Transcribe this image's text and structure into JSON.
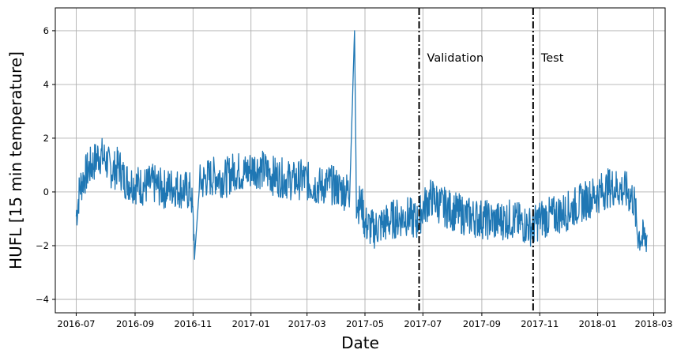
{
  "chart_data": {
    "type": "line",
    "xlabel": "Date",
    "ylabel": "HUFL [15 min temperature]",
    "xlim": [
      "2016-06-09",
      "2018-03-13"
    ],
    "ylim": [
      -4.5,
      6.85
    ],
    "grid": true,
    "x_ticks": [
      "2016-07",
      "2016-09",
      "2016-11",
      "2017-01",
      "2017-03",
      "2017-05",
      "2017-07",
      "2017-09",
      "2017-11",
      "2018-01",
      "2018-03"
    ],
    "y_ticks": [
      -4,
      -2,
      0,
      2,
      4,
      6
    ],
    "y_tick_labels": [
      "−4",
      "−2",
      "0",
      "2",
      "4",
      "6"
    ],
    "series": [
      {
        "color": "#1f77b4",
        "points": [
          [
            "2016-07-01",
            -0.9
          ],
          [
            "2016-07-05",
            0.2
          ],
          [
            "2016-07-10",
            0.6
          ],
          [
            "2016-07-15",
            0.9
          ],
          [
            "2016-07-20",
            1.1
          ],
          [
            "2016-07-25",
            1.4
          ],
          [
            "2016-08-01",
            1.2
          ],
          [
            "2016-08-05",
            0.9
          ],
          [
            "2016-08-10",
            0.8
          ],
          [
            "2016-08-15",
            1.0
          ],
          [
            "2016-08-20",
            0.5
          ],
          [
            "2016-08-25",
            0.4
          ],
          [
            "2016-09-01",
            0.3
          ],
          [
            "2016-09-10",
            0.2
          ],
          [
            "2016-09-20",
            0.3
          ],
          [
            "2016-10-01",
            0.1
          ],
          [
            "2016-10-10",
            0.2
          ],
          [
            "2016-10-20",
            0.1
          ],
          [
            "2016-10-30",
            0.0
          ],
          [
            "2016-11-03",
            -2.2
          ],
          [
            "2016-11-08",
            0.3
          ],
          [
            "2016-11-15",
            0.5
          ],
          [
            "2016-11-25",
            0.6
          ],
          [
            "2016-12-05",
            0.5
          ],
          [
            "2016-12-15",
            0.8
          ],
          [
            "2016-12-25",
            0.7
          ],
          [
            "2017-01-05",
            0.9
          ],
          [
            "2017-01-15",
            0.8
          ],
          [
            "2017-01-25",
            0.6
          ],
          [
            "2017-02-05",
            0.5
          ],
          [
            "2017-02-15",
            0.4
          ],
          [
            "2017-02-25",
            0.5
          ],
          [
            "2017-03-05",
            0.3
          ],
          [
            "2017-03-15",
            0.2
          ],
          [
            "2017-03-25",
            0.3
          ],
          [
            "2017-04-05",
            0.1
          ],
          [
            "2017-04-15",
            0.0
          ],
          [
            "2017-04-20",
            6.0
          ],
          [
            "2017-04-22",
            -0.4
          ],
          [
            "2017-04-28",
            -0.5
          ],
          [
            "2017-05-01",
            -1.2
          ],
          [
            "2017-05-10",
            -1.4
          ],
          [
            "2017-05-20",
            -1.2
          ],
          [
            "2017-06-01",
            -1.0
          ],
          [
            "2017-06-15",
            -0.9
          ],
          [
            "2017-06-25",
            -1.1
          ],
          [
            "2017-07-01",
            -0.6
          ],
          [
            "2017-07-10",
            -0.2
          ],
          [
            "2017-07-20",
            -0.5
          ],
          [
            "2017-08-01",
            -0.7
          ],
          [
            "2017-08-15",
            -0.9
          ],
          [
            "2017-09-01",
            -1.0
          ],
          [
            "2017-09-15",
            -1.1
          ],
          [
            "2017-10-01",
            -1.0
          ],
          [
            "2017-10-15",
            -1.2
          ],
          [
            "2017-10-25",
            -1.3
          ],
          [
            "2017-11-01",
            -1.0
          ],
          [
            "2017-11-15",
            -0.9
          ],
          [
            "2017-12-01",
            -0.7
          ],
          [
            "2017-12-15",
            -0.4
          ],
          [
            "2017-12-25",
            -0.2
          ],
          [
            "2018-01-05",
            0.0
          ],
          [
            "2018-01-15",
            0.2
          ],
          [
            "2018-01-25",
            0.1
          ],
          [
            "2018-02-01",
            0.0
          ],
          [
            "2018-02-08",
            -0.3
          ],
          [
            "2018-02-12",
            -1.5
          ],
          [
            "2018-02-18",
            -1.8
          ],
          [
            "2018-02-22",
            -1.6
          ]
        ]
      }
    ],
    "split_lines": [
      {
        "x": "2017-06-27",
        "label": "Validation",
        "label_y": 5.0
      },
      {
        "x": "2017-10-25",
        "label": "Test",
        "label_y": 5.0
      }
    ]
  }
}
